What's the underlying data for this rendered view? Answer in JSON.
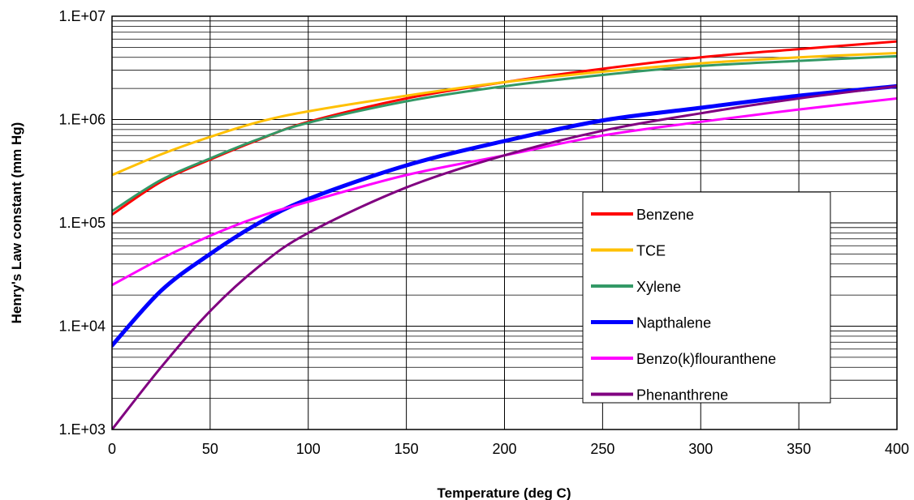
{
  "chart_data": {
    "type": "line",
    "title": "",
    "xlabel": "Temperature (deg C)",
    "ylabel": "Henry's Law constant (mm Hg)",
    "xlim": [
      0,
      400
    ],
    "ylim": [
      1000,
      10000000
    ],
    "y_scale": "log",
    "grid": true,
    "legend_position": "lower-right",
    "x_ticks": [
      0,
      50,
      100,
      150,
      200,
      250,
      300,
      350,
      400
    ],
    "x_tick_labels": [
      "0",
      "50",
      "100",
      "150",
      "200",
      "250",
      "300",
      "350",
      "400"
    ],
    "y_ticks": [
      1000,
      10000,
      100000,
      1000000,
      10000000
    ],
    "y_tick_labels": [
      "1.E+03",
      "1.E+04",
      "1.E+05",
      "1.E+06",
      "1.E+07"
    ],
    "x": [
      0,
      25,
      50,
      75,
      100,
      150,
      200,
      250,
      300,
      350,
      400
    ],
    "series": [
      {
        "name": "Benzene",
        "color": "#ff0000",
        "values": [
          120000,
          250000,
          410000,
          640000,
          950000,
          1600000,
          2300000,
          3100000,
          4000000,
          4800000,
          5700000
        ]
      },
      {
        "name": "TCE",
        "color": "#ffc000",
        "values": [
          290000,
          460000,
          680000,
          950000,
          1200000,
          1700000,
          2300000,
          2900000,
          3500000,
          4000000,
          4400000
        ]
      },
      {
        "name": "Xylene",
        "color": "#339966",
        "values": [
          130000,
          260000,
          420000,
          650000,
          930000,
          1500000,
          2100000,
          2700000,
          3300000,
          3700000,
          4100000
        ]
      },
      {
        "name": "Napthalene",
        "color": "#0000ff",
        "values": [
          6500,
          22000,
          50000,
          100000,
          170000,
          360000,
          620000,
          980000,
          1300000,
          1700000,
          2100000
        ]
      },
      {
        "name": "Benzo(k)flouranthene",
        "color": "#ff00ff",
        "values": [
          25000,
          45000,
          75000,
          115000,
          160000,
          290000,
          450000,
          700000,
          950000,
          1250000,
          1600000
        ]
      },
      {
        "name": "Phenanthrene",
        "color": "#800080",
        "values": [
          1000,
          4000,
          14000,
          38000,
          80000,
          220000,
          450000,
          780000,
          1150000,
          1600000,
          2100000
        ]
      }
    ]
  }
}
